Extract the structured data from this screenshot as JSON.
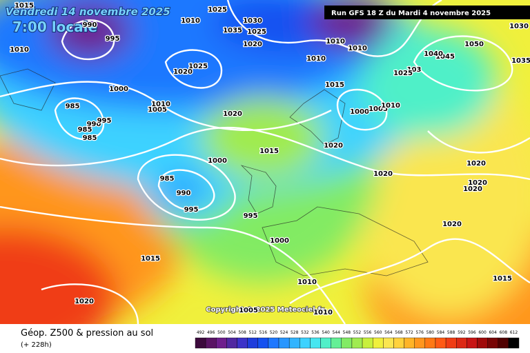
{
  "header": {
    "date": "Vendredi 14 novembre 2025",
    "time": "7:00 locale",
    "run": "Run GFS 18 Z du Mardi 4 novembre 2025"
  },
  "isobar_labels": [
    "1015",
    "990",
    "995",
    "1010",
    "1025",
    "1010",
    "1035",
    "1030",
    "1025",
    "1020",
    "1010",
    "1010",
    "1010",
    "1030",
    "1050",
    "1045",
    "1040",
    "1035",
    "1025",
    "1020",
    "1000",
    "1015",
    "103",
    "1025",
    "1005",
    "1010",
    "1020",
    "985",
    "1000",
    "1005",
    "1010",
    "990",
    "995",
    "985",
    "985",
    "1015",
    "1020",
    "1000",
    "1020",
    "1020",
    "985",
    "990",
    "1020",
    "1020",
    "995",
    "995",
    "1020",
    "1000",
    "1015",
    "1010",
    "1015",
    "1020",
    "1010",
    "1005"
  ],
  "copyright": "Copyright © 2025 Meteociel.fr",
  "footer": {
    "title": "Géop. Z500 & pression au sol",
    "lead_time": "(+ 228h)"
  },
  "geopotential_scale": {
    "labels": [
      492,
      496,
      500,
      504,
      508,
      512,
      516,
      520,
      524,
      528,
      532,
      536,
      540,
      544,
      548,
      552,
      556,
      560,
      564,
      568,
      572,
      576,
      580,
      584,
      588,
      592,
      596,
      600,
      604,
      608,
      612
    ],
    "colors": [
      "#3c0a3c",
      "#5a1464",
      "#6e1e8c",
      "#5028a0",
      "#3c32c8",
      "#1e3cdc",
      "#1450f0",
      "#1e78ff",
      "#2896ff",
      "#32b4ff",
      "#3cd2ff",
      "#46e6f0",
      "#50f0c8",
      "#64f096",
      "#82eb64",
      "#a0eb50",
      "#c8f03c",
      "#f0f03c",
      "#fae650",
      "#ffd23c",
      "#ffb428",
      "#ff961e",
      "#ff7814",
      "#ff5a14",
      "#f03c14",
      "#dc2814",
      "#c81414",
      "#a00a0a",
      "#780505",
      "#500000",
      "#000000"
    ]
  }
}
